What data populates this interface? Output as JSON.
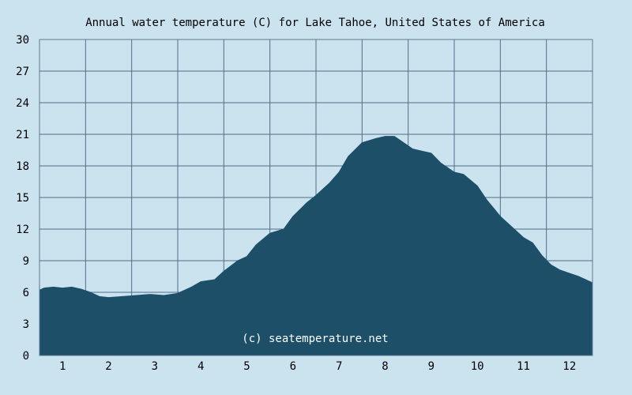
{
  "chart_data": {
    "type": "area",
    "title": "Annual water temperature (C) for Lake Tahoe, United States of America",
    "xlabel": "",
    "ylabel": "",
    "ylim": [
      0,
      30
    ],
    "xlim": [
      0.5,
      12.5
    ],
    "yticks": [
      "0",
      "3",
      "6",
      "9",
      "12",
      "15",
      "18",
      "21",
      "24",
      "27",
      "30"
    ],
    "xticks": [
      "1",
      "2",
      "3",
      "4",
      "5",
      "6",
      "7",
      "8",
      "9",
      "10",
      "11",
      "12"
    ],
    "grid": true,
    "legend": "none",
    "watermark": "(c) seatemperature.net",
    "series": [
      {
        "x": [
          0.5,
          0.6,
          0.8,
          1.0,
          1.2,
          1.4,
          1.6,
          1.8,
          2.0,
          2.3,
          2.6,
          2.9,
          3.2,
          3.5,
          3.8,
          4.0,
          4.3,
          4.5,
          4.8,
          5.0,
          5.2,
          5.5,
          5.8,
          6.0,
          6.3,
          6.5,
          6.8,
          7.0,
          7.2,
          7.5,
          7.8,
          8.0,
          8.2,
          8.4,
          8.6,
          8.8,
          9.0,
          9.2,
          9.5,
          9.7,
          10.0,
          10.2,
          10.5,
          10.7,
          11.0,
          11.2,
          11.4,
          11.6,
          11.8,
          12.0,
          12.2,
          12.5
        ],
        "values": [
          6.2,
          6.4,
          6.5,
          6.4,
          6.5,
          6.3,
          6.0,
          5.6,
          5.5,
          5.6,
          5.7,
          5.8,
          5.7,
          5.9,
          6.5,
          7.0,
          7.2,
          8.0,
          9.0,
          9.4,
          10.5,
          11.6,
          12.0,
          13.2,
          14.5,
          15.2,
          16.4,
          17.4,
          18.9,
          20.2,
          20.6,
          20.8,
          20.8,
          20.2,
          19.6,
          19.4,
          19.2,
          18.3,
          17.4,
          17.2,
          16.1,
          14.8,
          13.2,
          12.4,
          11.2,
          10.7,
          9.5,
          8.6,
          8.1,
          7.8,
          7.5,
          6.9
        ],
        "color": "#1d4f69"
      }
    ],
    "colors": {
      "background": "#cbe2ef",
      "fill": "#1d4f69",
      "grid": "#4f6f86",
      "frame": "#58798f",
      "text": "#000000",
      "watermark": "#ffffff"
    }
  }
}
